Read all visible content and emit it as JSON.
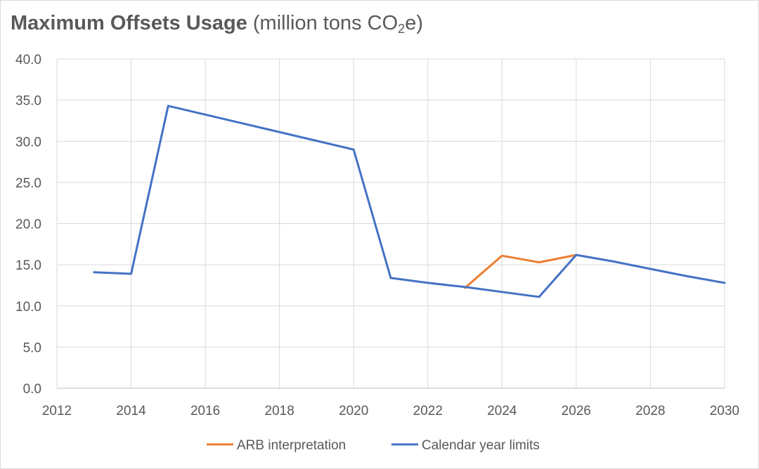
{
  "title": {
    "bold": "Maximum Offsets Usage",
    "unit_before_sub": "(million tons CO",
    "unit_sub": "2",
    "unit_after_sub": "e)"
  },
  "chart_data": {
    "type": "line",
    "title": "Maximum Offsets Usage (million tons CO2e)",
    "xlim": [
      2012,
      2030
    ],
    "ylim": [
      0,
      40
    ],
    "x_ticks": [
      "2012",
      "2014",
      "2016",
      "2018",
      "2020",
      "2022",
      "2024",
      "2026",
      "2028",
      "2030"
    ],
    "y_ticks": [
      "0.0",
      "5.0",
      "10.0",
      "15.0",
      "20.0",
      "25.0",
      "30.0",
      "35.0",
      "40.0"
    ],
    "grid": true,
    "legend_position": "bottom",
    "series": [
      {
        "name": "ARB interpretation",
        "color": "#ED7D31",
        "points": [
          [
            2023,
            12.2
          ],
          [
            2024,
            16.1
          ],
          [
            2025,
            15.3
          ],
          [
            2026,
            16.2
          ]
        ]
      },
      {
        "name": "Calendar year limits",
        "color": "#4472C4",
        "points": [
          [
            2013,
            14.1
          ],
          [
            2014,
            13.9
          ],
          [
            2015,
            34.3
          ],
          [
            2020,
            29.0
          ],
          [
            2021,
            13.4
          ],
          [
            2022,
            12.8
          ],
          [
            2023,
            12.3
          ],
          [
            2024,
            11.7
          ],
          [
            2025,
            11.1
          ],
          [
            2026,
            16.2
          ],
          [
            2027,
            15.4
          ],
          [
            2028,
            14.5
          ],
          [
            2029,
            13.6
          ],
          [
            2030,
            12.8
          ]
        ]
      }
    ]
  }
}
